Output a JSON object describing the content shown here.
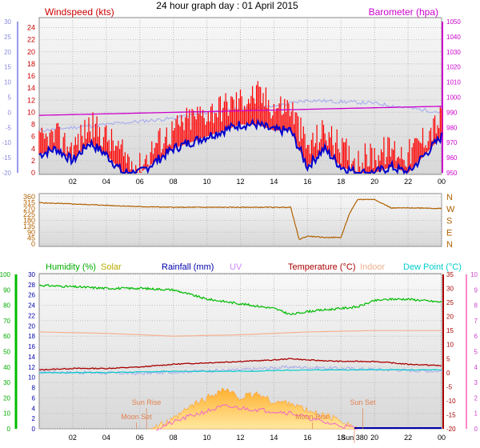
{
  "title": "24 hour graph day : 01 April 2015",
  "x_ticks": [
    "02",
    "04",
    "06",
    "08",
    "10",
    "12",
    "14",
    "16",
    "18",
    "20",
    "22",
    "00"
  ],
  "colors": {
    "wind": "#ff0000",
    "gust": "#0000cc",
    "baro": "#cc00cc",
    "wind_avg_light": "#aab0ee",
    "dir": "#b06000",
    "humidity": "#00bb00",
    "solar": "#ccaa00",
    "rain": "#0000aa",
    "uv": "#cc88ff",
    "temp": "#aa0000",
    "indoor": "#f4b090",
    "dew": "#00cccc",
    "sun_fill": "#ffbb44",
    "annotation": "#e08050"
  },
  "chart_data": [
    {
      "type": "line",
      "title": "",
      "series": [
        {
          "name": "Windspeed (kts)",
          "axis": "left",
          "color": "#ff0000",
          "x": [
            0,
            1,
            2,
            3,
            4,
            5,
            6,
            7,
            8,
            9,
            10,
            11,
            12,
            13,
            14,
            15,
            16,
            17,
            18,
            19,
            20,
            21,
            22,
            23,
            24
          ],
          "values": [
            4,
            5,
            3,
            7,
            5,
            2,
            0,
            4,
            6,
            8,
            9,
            10,
            11,
            12,
            10,
            10,
            3,
            6,
            3,
            1,
            2,
            3,
            2,
            5,
            8
          ]
        },
        {
          "name": "",
          "axis": "left",
          "color": "#0000cc",
          "x": [
            0,
            1,
            2,
            3,
            4,
            5,
            6,
            7,
            8,
            9,
            10,
            11,
            12,
            13,
            14,
            15,
            16,
            17,
            18,
            19,
            20,
            21,
            22,
            23,
            24
          ],
          "values": [
            3,
            4,
            2,
            5,
            3,
            0,
            0,
            2,
            4,
            5,
            6,
            7,
            8,
            8,
            7,
            7,
            1,
            4,
            1,
            0,
            0,
            1,
            0,
            3,
            6
          ]
        },
        {
          "name": "Barometer (hpa)",
          "axis": "right",
          "color": "#cc00cc",
          "x": [
            0,
            4,
            8,
            12,
            16,
            20,
            24
          ],
          "values": [
            988,
            989,
            990,
            991,
            992,
            993,
            994
          ]
        }
      ],
      "y_left": {
        "label": "Windspeed (kts)",
        "range": [
          0,
          25
        ],
        "ticks": [
          0,
          2,
          4,
          6,
          8,
          10,
          12,
          14,
          16,
          18,
          20,
          22,
          24
        ]
      },
      "y_left_outer": {
        "range": [
          -20,
          30
        ],
        "ticks": [
          -20,
          -15,
          -10,
          -5,
          0,
          5,
          10,
          15,
          20,
          25,
          30
        ]
      },
      "y_right": {
        "label": "Barometer (hpa)",
        "range": [
          950,
          1050
        ],
        "ticks": [
          950,
          960,
          970,
          980,
          990,
          1000,
          1010,
          1020,
          1030,
          1040,
          1050
        ]
      },
      "xlim": [
        0,
        24
      ]
    },
    {
      "type": "line",
      "title": "",
      "series": [
        {
          "name": "",
          "color": "#b06000",
          "x": [
            0,
            2,
            4,
            6,
            8,
            10,
            12,
            14,
            15,
            15.5,
            16,
            17,
            18,
            18.5,
            19,
            20,
            21,
            22,
            23,
            24
          ],
          "values": [
            315,
            305,
            295,
            285,
            280,
            280,
            280,
            280,
            280,
            35,
            60,
            50,
            50,
            230,
            340,
            340,
            275,
            275,
            275,
            270
          ]
        }
      ],
      "y_left": {
        "range": [
          0,
          360
        ],
        "ticks": [
          0,
          90,
          180,
          270,
          360
        ]
      },
      "y_left_half": {
        "ticks": [
          45,
          135,
          225,
          315
        ]
      },
      "y_right": {
        "labels": [
          "N",
          "W",
          "S",
          "E",
          "N"
        ]
      },
      "xlim": [
        0,
        24
      ]
    },
    {
      "type": "line",
      "title": "",
      "legend": [
        "Humidity (%)",
        "Solar",
        "Rainfall (mm)",
        "UV",
        "Temperature (°C)",
        "Indoor",
        "Dew Point (°C)"
      ],
      "series": [
        {
          "name": "Humidity (%)",
          "axis": "humidity",
          "color": "#00bb00",
          "x": [
            0,
            2,
            4,
            6,
            8,
            10,
            12,
            14,
            15,
            16,
            18,
            19,
            20,
            21,
            22,
            23,
            24
          ],
          "values": [
            93,
            92,
            91,
            91,
            90,
            84,
            81,
            78,
            74,
            76,
            78,
            79,
            83,
            84,
            84,
            83,
            82
          ]
        },
        {
          "name": "Temperature (°C)",
          "axis": "right",
          "color": "#aa0000",
          "x": [
            0,
            2,
            4,
            6,
            8,
            10,
            12,
            14,
            15,
            16,
            18,
            20,
            22,
            24
          ],
          "values": [
            1,
            1.5,
            1.5,
            2,
            3,
            3.5,
            4,
            4.5,
            5,
            4.5,
            4,
            4,
            3,
            2.5
          ]
        },
        {
          "name": "Indoor",
          "axis": "right",
          "color": "#f4b090",
          "x": [
            0,
            4,
            8,
            12,
            16,
            20,
            24
          ],
          "values": [
            14.5,
            14,
            13,
            13.5,
            14.5,
            15,
            15
          ]
        },
        {
          "name": "Dew Point (°C)",
          "axis": "right",
          "color": "#00cccc",
          "x": [
            0,
            4,
            8,
            12,
            16,
            20,
            24
          ],
          "values": [
            0,
            0,
            0.5,
            0.5,
            1,
            1,
            1
          ]
        },
        {
          "name": "Solar",
          "axis": "solar",
          "color": "#ffbb44",
          "x": [
            6.5,
            7,
            8,
            9,
            10,
            11,
            12,
            13,
            14,
            15,
            16,
            17,
            18,
            19
          ],
          "values": [
            0,
            0.5,
            2,
            5,
            7,
            9,
            7,
            8,
            6,
            6,
            4,
            3,
            2,
            0
          ]
        }
      ],
      "y_left_humidity": {
        "range": [
          0,
          100
        ],
        "ticks": [
          0,
          10,
          20,
          30,
          40,
          50,
          60,
          70,
          80,
          90,
          100
        ]
      },
      "y_left_rain": {
        "range": [
          0,
          30
        ],
        "ticks": [
          0,
          2,
          4,
          6,
          8,
          10,
          12,
          14,
          16,
          18,
          20,
          22,
          24,
          26,
          28,
          30
        ]
      },
      "y_right_temp": {
        "range": [
          -20,
          35
        ],
        "ticks": [
          -20,
          -15,
          -10,
          -5,
          0,
          5,
          10,
          15,
          20,
          25,
          30,
          35
        ]
      },
      "y_right_uv": {
        "range": [
          0,
          10
        ],
        "ticks": [
          0,
          1,
          2,
          3,
          4,
          5,
          6,
          7,
          8,
          9,
          10
        ]
      },
      "annotations": [
        {
          "label": "Moon Set",
          "x": 5.8
        },
        {
          "label": "Sun Rise",
          "x": 6.4
        },
        {
          "label": "Moon Rise",
          "x": 16.3
        },
        {
          "label": "Sun Set",
          "x": 19.3
        },
        {
          "label": "Sun 380",
          "x": 18.8
        }
      ],
      "xlim": [
        0,
        24
      ]
    }
  ]
}
